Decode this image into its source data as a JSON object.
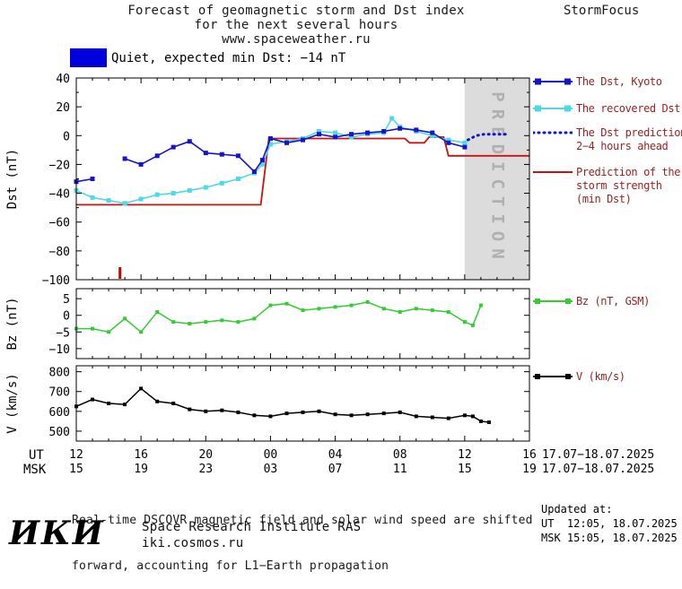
{
  "header": {
    "title_line1": "Forecast of geomagnetic storm and Dst index",
    "title_line2": "for the next several hours",
    "title_line3": "www.spaceweather.ru",
    "brand": "StormFocus"
  },
  "status": {
    "label": "Quiet, expected min Dst: −14 nT",
    "swatch_color": "#0000dd"
  },
  "chart_data": {
    "type": "line",
    "title": "Forecast of geomagnetic storm and Dst index for the next several hours",
    "x_axis": {
      "range": [
        12,
        40
      ],
      "tick_positions": [
        12,
        16,
        20,
        24,
        28,
        32,
        36,
        40
      ],
      "ut_labels": [
        "12",
        "16",
        "20",
        "00",
        "04",
        "08",
        "12",
        "16"
      ],
      "msk_labels": [
        "15",
        "19",
        "23",
        "03",
        "07",
        "11",
        "15",
        "19"
      ],
      "ut_row_label": "UT",
      "msk_row_label": "MSK",
      "ut_date": "17.07−18.07.2025",
      "msk_date": "17.07−18.07.2025"
    },
    "panels": [
      {
        "id": "dst",
        "ylabel": "Dst (nT)",
        "ylim": [
          -100,
          40
        ],
        "yticks": [
          40,
          20,
          0,
          -20,
          -40,
          -60,
          -80,
          -100
        ]
      },
      {
        "id": "bz",
        "ylabel": "Bz (nT)",
        "ylim": [
          -13,
          8
        ],
        "yticks": [
          5,
          0,
          -5,
          -10
        ]
      },
      {
        "id": "v",
        "ylabel": "V (km/s)",
        "ylim": [
          450,
          830
        ],
        "yticks": [
          800,
          700,
          600,
          500
        ]
      }
    ],
    "prediction_band": {
      "from": 36,
      "to": 40,
      "label": "PREDICTION",
      "fill": "#dcdcdc",
      "text_color": "#b0b0b0"
    },
    "onset_marker": {
      "x": 14.7,
      "color": "#cc0000"
    },
    "series": {
      "dst_kyoto": {
        "name": "The Dst, Kyoto",
        "color": "#1414c8",
        "marker": "square",
        "segments": [
          [
            [
              12,
              -32
            ],
            [
              13,
              -30
            ]
          ],
          [
            [
              15,
              -16
            ],
            [
              16,
              -20
            ],
            [
              17,
              -14
            ],
            [
              18,
              -8
            ],
            [
              19,
              -4
            ],
            [
              20,
              -12
            ],
            [
              21,
              -13
            ],
            [
              22,
              -14
            ],
            [
              23,
              -25
            ],
            [
              23.5,
              -17
            ],
            [
              24,
              -2
            ],
            [
              25,
              -5
            ],
            [
              26,
              -3
            ],
            [
              27,
              1
            ],
            [
              28,
              -1
            ],
            [
              29,
              1
            ],
            [
              30,
              2
            ],
            [
              31,
              3
            ],
            [
              32,
              5
            ],
            [
              33,
              4
            ],
            [
              34,
              2
            ],
            [
              35,
              -5
            ],
            [
              36,
              -8
            ]
          ]
        ]
      },
      "dst_recovered": {
        "name": "The recovered Dst",
        "color": "#4fd8e8",
        "marker": "square",
        "points": [
          [
            12,
            -38
          ],
          [
            13,
            -43
          ],
          [
            14,
            -45
          ],
          [
            15,
            -47
          ],
          [
            16,
            -44
          ],
          [
            17,
            -41
          ],
          [
            18,
            -40
          ],
          [
            19,
            -38
          ],
          [
            20,
            -36
          ],
          [
            21,
            -33
          ],
          [
            22,
            -30
          ],
          [
            23,
            -26
          ],
          [
            23.5,
            -20
          ],
          [
            24,
            -6
          ],
          [
            25,
            -4
          ],
          [
            26,
            -2
          ],
          [
            27,
            3
          ],
          [
            28,
            2
          ],
          [
            29,
            -1
          ],
          [
            30,
            1
          ],
          [
            31,
            2
          ],
          [
            31.5,
            12
          ],
          [
            32,
            6
          ],
          [
            33,
            3
          ],
          [
            34,
            0
          ],
          [
            35,
            -3
          ],
          [
            36,
            -5
          ]
        ]
      },
      "dst_prediction": {
        "name": "The Dst prediction 2−4 hours ahead",
        "color": "#1414c8",
        "style": "dotted",
        "points": [
          [
            36.2,
            -3
          ],
          [
            36.7,
            0
          ],
          [
            37.2,
            1
          ],
          [
            37.7,
            1
          ],
          [
            38.2,
            1
          ],
          [
            38.7,
            1
          ]
        ]
      },
      "storm_prediction": {
        "name": "Prediction of the storm strength (min Dst)",
        "color": "#cc1111",
        "points": [
          [
            12,
            -48
          ],
          [
            23.4,
            -48
          ],
          [
            23.9,
            -2
          ],
          [
            32.3,
            -2
          ],
          [
            32.6,
            -5
          ],
          [
            33.5,
            -5
          ],
          [
            33.8,
            -1
          ],
          [
            34.7,
            -1
          ],
          [
            35,
            -14
          ],
          [
            40,
            -14
          ]
        ]
      },
      "bz": {
        "name": "Bz (nT, GSM)",
        "color": "#33cc33",
        "marker": "square",
        "points": [
          [
            12,
            -4
          ],
          [
            13,
            -4
          ],
          [
            14,
            -5
          ],
          [
            15,
            -1
          ],
          [
            16,
            -5
          ],
          [
            17,
            1
          ],
          [
            18,
            -2
          ],
          [
            19,
            -2.5
          ],
          [
            20,
            -2
          ],
          [
            21,
            -1.5
          ],
          [
            22,
            -2
          ],
          [
            23,
            -1
          ],
          [
            24,
            3
          ],
          [
            25,
            3.5
          ],
          [
            26,
            1.5
          ],
          [
            27,
            2
          ],
          [
            28,
            2.5
          ],
          [
            29,
            3
          ],
          [
            30,
            4
          ],
          [
            31,
            2
          ],
          [
            32,
            1
          ],
          [
            33,
            2
          ],
          [
            34,
            1.5
          ],
          [
            35,
            1
          ],
          [
            36,
            -2
          ],
          [
            36.5,
            -3
          ],
          [
            37,
            3
          ]
        ]
      },
      "v": {
        "name": "V (km/s)",
        "color": "#000000",
        "marker": "square",
        "points": [
          [
            12,
            625
          ],
          [
            13,
            660
          ],
          [
            14,
            640
          ],
          [
            15,
            635
          ],
          [
            16,
            715
          ],
          [
            17,
            650
          ],
          [
            18,
            640
          ],
          [
            19,
            610
          ],
          [
            20,
            600
          ],
          [
            21,
            605
          ],
          [
            22,
            595
          ],
          [
            23,
            580
          ],
          [
            24,
            575
          ],
          [
            25,
            590
          ],
          [
            26,
            595
          ],
          [
            27,
            600
          ],
          [
            28,
            585
          ],
          [
            29,
            580
          ],
          [
            30,
            585
          ],
          [
            31,
            590
          ],
          [
            32,
            595
          ],
          [
            33,
            575
          ],
          [
            34,
            570
          ],
          [
            35,
            565
          ],
          [
            36,
            580
          ],
          [
            36.5,
            575
          ],
          [
            37,
            550
          ],
          [
            37.5,
            545
          ]
        ]
      }
    }
  },
  "legend": {
    "dst_kyoto": "The Dst, Kyoto",
    "dst_recovered": "The recovered Dst",
    "dst_prediction_line1": "The Dst prediction",
    "dst_prediction_line2": "2−4 hours ahead",
    "storm_line1": "Prediction of the",
    "storm_line2": "storm strength",
    "storm_line3": "(min Dst)",
    "bz": "Bz (nT, GSM)",
    "v": "V (km/s)"
  },
  "footer": {
    "note_line1": "Real-time DSCOVR magnetic field and solar wind speed are shifted",
    "note_line2": "forward, accounting for L1−Earth propagation",
    "updated_label": "Updated at:",
    "updated_ut": "UT  12:05, 18.07.2025",
    "updated_msk": "MSK 15:05, 18.07.2025",
    "logo": "ИКИ",
    "institute": "Space Research Institute RAS",
    "site": "iki.cosmos.ru"
  }
}
